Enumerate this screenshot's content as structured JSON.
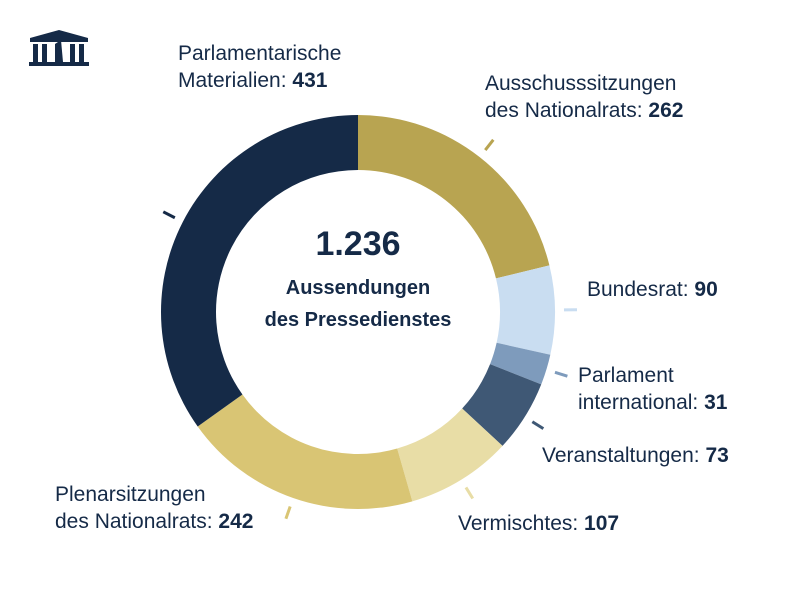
{
  "logo": {
    "icon": "parliament-building-logo-icon"
  },
  "chart_data": {
    "type": "pie",
    "donut": true,
    "center_total": "1.236",
    "center_label": "Aussendungen\ndes Pressedienstes",
    "start": "top, clockwise",
    "slices": [
      {
        "label": "Ausschusssitzungen des Nationalrats",
        "value": 262,
        "value_text": "262",
        "color": "#b8a451"
      },
      {
        "label": "Bundesrat",
        "value": 90,
        "value_text": "90",
        "color": "#c9ddf1"
      },
      {
        "label": "Parlament international",
        "value": 31,
        "value_text": "31",
        "color": "#7e9bbc"
      },
      {
        "label": "Veranstaltungen",
        "value": 73,
        "value_text": "73",
        "color": "#3f5875"
      },
      {
        "label": "Vermischtes",
        "value": 107,
        "value_text": "107",
        "color": "#e8dda6"
      },
      {
        "label": "Plenarsitzungen des Nationalrats",
        "value": 242,
        "value_text": "242",
        "color": "#d9c574"
      },
      {
        "label": "Parlamentarische Materialien",
        "value": 431,
        "value_text": "431",
        "color": "#152a47"
      }
    ],
    "labels_display": [
      {
        "l1": "Ausschusssitzungen",
        "l2": "des Nationalrats: "
      },
      {
        "l1": "",
        "l2": "Bundesrat: "
      },
      {
        "l1": "Parlament",
        "l2": "international: "
      },
      {
        "l1": "",
        "l2": "Veranstaltungen: "
      },
      {
        "l1": "",
        "l2": "Vermischtes: "
      },
      {
        "l1": "Plenarsitzungen",
        "l2": "des Nationalrats: "
      },
      {
        "l1": "Parlamentarische",
        "l2": "Materialien: "
      }
    ]
  }
}
